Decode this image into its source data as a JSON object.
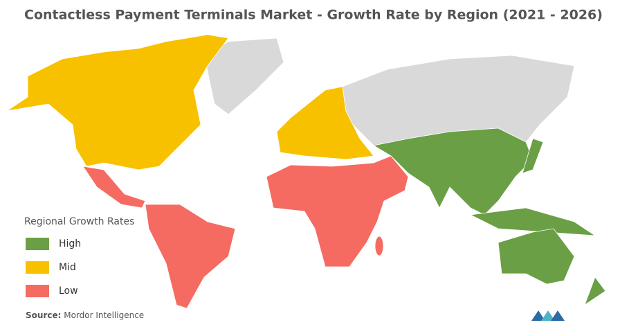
{
  "title": "Contactless Payment Terminals Market - Growth Rate by Region (2021 - 2026)",
  "legend": {
    "title": "Regional Growth Rates",
    "items": [
      {
        "label": "High",
        "color": "#6a9f45"
      },
      {
        "label": "Mid",
        "color": "#f8c100"
      },
      {
        "label": "Low",
        "color": "#f56b61"
      }
    ]
  },
  "source": {
    "prefix": "Source:",
    "text": "Mordor Intelligence"
  }
}
